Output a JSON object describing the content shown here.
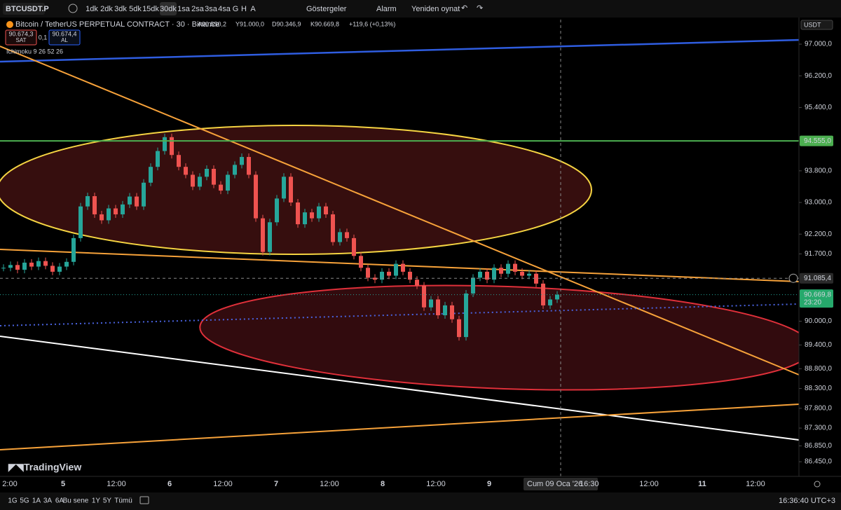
{
  "toolbar": {
    "symbol": "BTCUSDT.P",
    "intervals": [
      "1dk",
      "2dk",
      "3dk",
      "5dk",
      "15dk",
      "30dk",
      "1sa",
      "2sa",
      "3sa",
      "4sa",
      "G",
      "H",
      "A"
    ],
    "active_interval_index": 5,
    "indicators": "Göstergeler",
    "alert": "Alarm",
    "replay": "Yeniden oynat"
  },
  "legend": {
    "title": "Bitcoin / TetherUS PERPETUAL CONTRACT · 30 · Binance",
    "ohlc": [
      "A90.550,2",
      "Y91.000,0",
      "D90.346,9",
      "K90.669,8"
    ],
    "change": "+119,6 (+0,13%)",
    "sell_price": "90.674,3",
    "sell": "SAT",
    "spread": "0,1",
    "buy_price": "90.674,4",
    "buy": "AL",
    "indicator": "Ichimoku 9 26 52 26"
  },
  "currency": "USDT",
  "price_axis": {
    "ylim": [
      86080,
      97620
    ],
    "ticks": [
      {
        "value": 97000,
        "label": "97.000,0"
      },
      {
        "value": 96200,
        "label": "96.200,0"
      },
      {
        "value": 95400,
        "label": "95.400,0"
      },
      {
        "value": 93800,
        "label": "93.800,0"
      },
      {
        "value": 93000,
        "label": "93.000,0"
      },
      {
        "value": 92200,
        "label": "92.200,0"
      },
      {
        "value": 91700,
        "label": "91.700,0"
      },
      {
        "value": 90000,
        "label": "90.000,0"
      },
      {
        "value": 89400,
        "label": "89.400,0"
      },
      {
        "value": 88800,
        "label": "88.800,0"
      },
      {
        "value": 88300,
        "label": "88.300,0"
      },
      {
        "value": 87800,
        "label": "87.800,0"
      },
      {
        "value": 87300,
        "label": "87.300,0"
      },
      {
        "value": 86850,
        "label": "86.850,0"
      },
      {
        "value": 86450,
        "label": "86.450,0"
      }
    ],
    "badges": [
      {
        "value": 94555,
        "label": "94.555,0",
        "color": "#4caf50"
      },
      {
        "value": 91085.4,
        "label": "91.085,4",
        "color": "#2a2a2a"
      },
      {
        "value": 90669.8,
        "label": "90.669,8",
        "color": "#26a96c",
        "countdown": "23:20"
      }
    ]
  },
  "time_axis": {
    "labels": [
      "2:00",
      "5",
      "12:00",
      "6",
      "12:00",
      "7",
      "12:00",
      "8",
      "12:00",
      "9",
      null,
      null,
      "12:00",
      "11",
      "12:00"
    ],
    "crosshair_date": "Cum 09 Oca '26",
    "crosshair_time": "16:30"
  },
  "candles": {
    "up_color": "#26a69a",
    "down_color": "#ef5350",
    "close": [
      91350,
      91420,
      91300,
      91480,
      91380,
      91520,
      91400,
      91250,
      91380,
      91500,
      92100,
      92900,
      93160,
      92700,
      92550,
      92850,
      92700,
      92950,
      93150,
      92900,
      93500,
      93900,
      94300,
      94650,
      94200,
      93900,
      93700,
      93400,
      93650,
      93850,
      93450,
      93300,
      93700,
      93950,
      94150,
      93700,
      92600,
      91750,
      92500,
      93100,
      93650,
      93000,
      92450,
      92750,
      92600,
      92900,
      92700,
      92000,
      92250,
      92100,
      91650,
      91350,
      91100,
      91050,
      91250,
      91150,
      91450,
      91250,
      91050,
      90900,
      90350,
      90550,
      90150,
      90400,
      90050,
      89600,
      90700,
      91100,
      91250,
      91050,
      91350,
      91200,
      91450,
      91250,
      91150,
      91200,
      90950,
      90400,
      90550,
      90669.8
    ]
  },
  "brand": "TradingView",
  "bottom": {
    "ranges": [
      "1G",
      "5G",
      "1A",
      "3A",
      "6A",
      "Bu sene",
      "1Y",
      "5Y",
      "Tümü"
    ],
    "clock": "16:36:40 UTC+3"
  }
}
